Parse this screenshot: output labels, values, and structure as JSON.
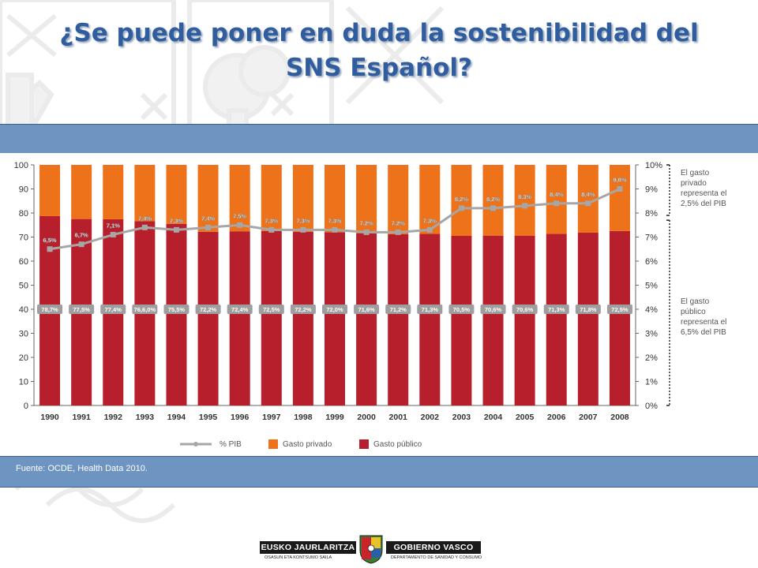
{
  "slide": {
    "title": "¿Se puede poner en duda la sostenibilidad del SNS Español?",
    "source": "Fuente: OCDE, Health Data 2010.",
    "title_color": "#2f5d9e",
    "band_color": "#6e94c1"
  },
  "footer": {
    "left_label": "EUSKO JAURLARITZA",
    "left_sub": "OSASUN ETA KONTSUMO SAILA",
    "right_label": "GOBIERNO VASCO",
    "right_sub": "DEPARTAMENTO DE SANIDAD Y CONSUMO",
    "emblem_icon": "basque-government-shield-icon"
  },
  "chart_data": {
    "type": "bar",
    "stacked": true,
    "categories": [
      "1990",
      "1991",
      "1992",
      "1993",
      "1994",
      "1995",
      "1996",
      "1997",
      "1998",
      "1999",
      "2000",
      "2001",
      "2002",
      "2003",
      "2004",
      "2005",
      "2006",
      "2007",
      "2008"
    ],
    "ylim": [
      0,
      100
    ],
    "yticks": [
      "0",
      "10",
      "20",
      "30",
      "40",
      "50",
      "60",
      "70",
      "80",
      "90",
      "100"
    ],
    "y2lim": [
      0,
      10
    ],
    "y2ticks": [
      "0%",
      "1%",
      "2%",
      "3%",
      "4%",
      "5%",
      "6%",
      "7%",
      "8%",
      "9%",
      "10%"
    ],
    "series": [
      {
        "name": "Gasto público",
        "color": "#b81f2d",
        "values": [
          78.7,
          77.5,
          77.4,
          76.6,
          75.5,
          72.2,
          72.4,
          72.5,
          72.2,
          72.0,
          71.6,
          71.2,
          71.3,
          70.5,
          70.6,
          70.6,
          71.3,
          71.8,
          72.5
        ],
        "labels": [
          "78,7%",
          "77,5%",
          "77,4%",
          "76,6,0%",
          "75,5%",
          "72,2%",
          "72,4%",
          "72,5%",
          "72,2%",
          "72,0%",
          "71,6%",
          "71,2%",
          "71,3%",
          "70,5%",
          "70,6%",
          "70,6%",
          "71,3%",
          "71,8%",
          "72,5%"
        ]
      },
      {
        "name": "Gasto privado",
        "color": "#ee7219",
        "values": [
          21.3,
          22.5,
          22.6,
          23.4,
          24.5,
          27.8,
          27.6,
          27.5,
          27.8,
          28.0,
          28.4,
          28.8,
          28.7,
          29.5,
          29.4,
          29.4,
          28.7,
          28.2,
          27.5
        ]
      },
      {
        "name": "% PIB",
        "type": "line",
        "axis": "right",
        "color": "#a6a6a6",
        "values": [
          6.5,
          6.7,
          7.1,
          7.4,
          7.3,
          7.4,
          7.5,
          7.3,
          7.3,
          7.3,
          7.2,
          7.2,
          7.3,
          8.2,
          8.2,
          8.3,
          8.4,
          8.4,
          9.0
        ],
        "labels": [
          "6,5%",
          "6,7%",
          "7,1%",
          "7,4%",
          "7,3%",
          "7,4%",
          "7,5%",
          "7,3%",
          "7,3%",
          "7,3%",
          "7,2%",
          "7,2%",
          "7,3%",
          "8,2%",
          "8,2%",
          "8,3%",
          "8,4%",
          "8,4%",
          "9,0%"
        ]
      }
    ],
    "legend": [
      "% PIB",
      "Gasto privado",
      "Gasto público"
    ],
    "annotations": [
      {
        "text": [
          "El gasto",
          "privado",
          "representa el",
          "2,5% del PIB"
        ]
      },
      {
        "text": [
          "El gasto",
          "público",
          "representa el",
          "6,5% del PIB"
        ]
      }
    ]
  }
}
